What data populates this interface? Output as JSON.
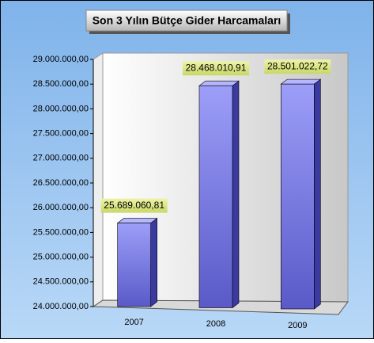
{
  "chart_data": {
    "type": "bar3d",
    "title": "Son 3 Yılın Bütçe Gider Harcamaları",
    "categories": [
      "2007",
      "2008",
      "2009"
    ],
    "values": [
      25689060.81,
      28468010.91,
      28501022.72
    ],
    "value_labels": [
      "25.689.060,81",
      "28.468.010,91",
      "28.501.022,72"
    ],
    "color": "#8a8cf0",
    "ylim": [
      24000000,
      29000000
    ],
    "yticks": [
      {
        "value": 24000000,
        "label": "24.000.000,00"
      },
      {
        "value": 24500000,
        "label": "24.500.000,00"
      },
      {
        "value": 25000000,
        "label": "25.000.000,00"
      },
      {
        "value": 25500000,
        "label": "25.500.000,00"
      },
      {
        "value": 26000000,
        "label": "26.000.000,00"
      },
      {
        "value": 26500000,
        "label": "26.500.000,00"
      },
      {
        "value": 27000000,
        "label": "27.000.000,00"
      },
      {
        "value": 27500000,
        "label": "27.500.000,00"
      },
      {
        "value": 28000000,
        "label": "28.000.000,00"
      },
      {
        "value": 28500000,
        "label": "28.500.000,00"
      },
      {
        "value": 29000000,
        "label": "29.000.000,00"
      }
    ],
    "grid": false
  }
}
